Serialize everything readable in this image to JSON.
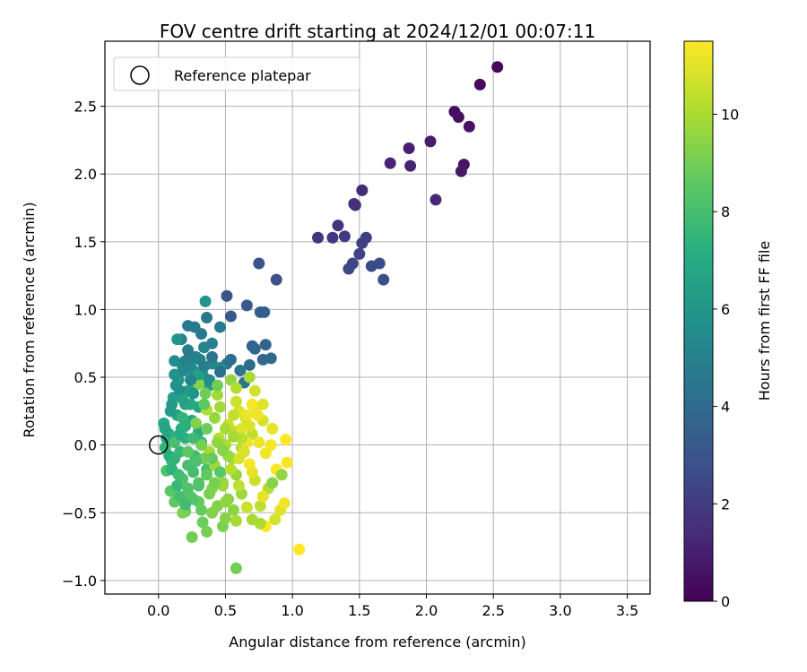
{
  "chart_data": {
    "type": "scatter",
    "title": "FOV centre drift starting at 2024/12/01 00:07:11",
    "xlabel": "Angular distance from reference (arcmin)",
    "ylabel": "Rotation from reference (arcmin)",
    "xlim": [
      -0.4,
      3.67
    ],
    "ylim": [
      -1.1,
      2.98
    ],
    "xticks": [
      0.0,
      0.5,
      1.0,
      1.5,
      2.0,
      2.5,
      3.0,
      3.5
    ],
    "xtick_labels": [
      "0.0",
      "0.5",
      "1.0",
      "1.5",
      "2.0",
      "2.5",
      "3.0",
      "3.5"
    ],
    "yticks": [
      -1.0,
      -0.5,
      0.0,
      0.5,
      1.0,
      1.5,
      2.0,
      2.5
    ],
    "ytick_labels": [
      "−1.0",
      "−0.5",
      "0.0",
      "0.5",
      "1.0",
      "1.5",
      "2.0",
      "2.5"
    ],
    "grid": true,
    "legend": {
      "placement": "top-left",
      "entries": [
        "Reference platepar"
      ]
    },
    "reference_point": {
      "x": 0.0,
      "y": 0.0
    },
    "colorbar": {
      "label": "Hours from first FF file",
      "min": 0,
      "max": 11.5,
      "ticks": [
        0,
        2,
        4,
        6,
        8,
        10
      ],
      "tick_labels": [
        "0",
        "2",
        "4",
        "6",
        "8",
        "10"
      ],
      "colormap": "viridis"
    },
    "points": [
      [
        2.53,
        2.79,
        0.2
      ],
      [
        2.4,
        2.66,
        0.3
      ],
      [
        2.21,
        2.46,
        0.4
      ],
      [
        2.24,
        2.42,
        0.5
      ],
      [
        2.32,
        2.35,
        0.6
      ],
      [
        2.28,
        2.07,
        0.7
      ],
      [
        2.26,
        2.02,
        0.8
      ],
      [
        2.03,
        2.24,
        0.9
      ],
      [
        1.87,
        2.19,
        1.0
      ],
      [
        1.88,
        2.06,
        1.1
      ],
      [
        1.73,
        2.08,
        1.2
      ],
      [
        2.07,
        1.81,
        1.3
      ],
      [
        1.52,
        1.88,
        1.4
      ],
      [
        1.46,
        1.78,
        1.5
      ],
      [
        1.47,
        1.77,
        1.6
      ],
      [
        1.34,
        1.62,
        1.7
      ],
      [
        1.19,
        1.53,
        1.8
      ],
      [
        1.3,
        1.53,
        1.9
      ],
      [
        1.39,
        1.54,
        2.0
      ],
      [
        1.55,
        1.53,
        2.1
      ],
      [
        1.52,
        1.49,
        2.2
      ],
      [
        1.5,
        1.41,
        2.3
      ],
      [
        1.45,
        1.34,
        2.4
      ],
      [
        1.42,
        1.3,
        2.5
      ],
      [
        1.59,
        1.32,
        2.6
      ],
      [
        1.65,
        1.34,
        2.7
      ],
      [
        1.68,
        1.22,
        2.8
      ],
      [
        0.88,
        1.22,
        2.9
      ],
      [
        0.75,
        1.34,
        3.0
      ],
      [
        0.51,
        1.1,
        3.1
      ],
      [
        0.66,
        1.03,
        3.2
      ],
      [
        0.54,
        0.95,
        3.3
      ],
      [
        0.76,
        0.98,
        3.4
      ],
      [
        0.79,
        0.98,
        3.5
      ],
      [
        0.7,
        0.73,
        3.6
      ],
      [
        0.8,
        0.74,
        3.7
      ],
      [
        0.72,
        0.71,
        3.8
      ],
      [
        0.78,
        0.63,
        3.9
      ],
      [
        0.84,
        0.64,
        4.0
      ],
      [
        0.68,
        0.59,
        4.1
      ],
      [
        0.54,
        0.63,
        4.2
      ],
      [
        0.51,
        0.6,
        4.3
      ],
      [
        0.61,
        0.55,
        4.4
      ],
      [
        0.64,
        0.46,
        4.5
      ],
      [
        0.22,
        0.88,
        4.6
      ],
      [
        0.27,
        0.87,
        4.7
      ],
      [
        0.46,
        0.87,
        4.8
      ],
      [
        0.17,
        0.78,
        4.9
      ],
      [
        0.4,
        0.75,
        5.0
      ],
      [
        0.34,
        0.72,
        5.1
      ],
      [
        0.23,
        0.65,
        5.2
      ],
      [
        0.31,
        0.63,
        5.3
      ],
      [
        0.4,
        0.6,
        5.4
      ],
      [
        0.46,
        0.57,
        5.5
      ],
      [
        0.12,
        0.62,
        5.6
      ],
      [
        0.18,
        0.58,
        5.7
      ],
      [
        0.26,
        0.55,
        5.8
      ],
      [
        0.33,
        0.52,
        5.9
      ],
      [
        0.35,
        1.06,
        6.0
      ],
      [
        0.15,
        0.48,
        6.1
      ],
      [
        0.28,
        0.46,
        6.2
      ],
      [
        0.38,
        0.44,
        6.3
      ],
      [
        0.22,
        0.4,
        6.4
      ],
      [
        0.11,
        0.35,
        6.5
      ],
      [
        0.2,
        0.3,
        6.6
      ],
      [
        0.3,
        0.28,
        6.7
      ],
      [
        0.14,
        0.22,
        6.8
      ],
      [
        0.25,
        0.18,
        6.9
      ],
      [
        0.04,
        0.16,
        7.0
      ],
      [
        0.17,
        0.12,
        7.1
      ],
      [
        0.3,
        0.1,
        7.2
      ],
      [
        0.08,
        0.08,
        7.3
      ],
      [
        0.2,
        0.05,
        7.4
      ],
      [
        0.32,
        0.02,
        7.5
      ],
      [
        0.05,
        -0.02,
        7.6
      ],
      [
        0.16,
        -0.05,
        7.7
      ],
      [
        0.27,
        -0.08,
        7.8
      ],
      [
        0.1,
        -0.12,
        7.9
      ],
      [
        0.22,
        -0.15,
        8.0
      ],
      [
        0.36,
        -0.18,
        8.1
      ],
      [
        0.06,
        -0.19,
        8.2
      ],
      [
        0.18,
        -0.25,
        8.3
      ],
      [
        0.3,
        -0.28,
        8.4
      ],
      [
        0.09,
        -0.34,
        8.5
      ],
      [
        0.24,
        -0.38,
        8.6
      ],
      [
        0.12,
        -0.42,
        8.7
      ],
      [
        0.2,
        -0.49,
        8.8
      ],
      [
        0.33,
        -0.57,
        8.9
      ],
      [
        0.25,
        -0.68,
        9.0
      ],
      [
        0.36,
        -0.64,
        9.1
      ],
      [
        0.18,
        -0.5,
        9.2
      ],
      [
        0.44,
        -0.45,
        9.3
      ],
      [
        0.52,
        -0.4,
        9.4
      ],
      [
        0.4,
        -0.32,
        9.5
      ],
      [
        0.48,
        -0.28,
        9.6
      ],
      [
        0.58,
        -0.22,
        9.7
      ],
      [
        0.42,
        -0.15,
        9.8
      ],
      [
        0.55,
        -0.1,
        9.9
      ],
      [
        0.38,
        -0.05,
        10.0
      ],
      [
        0.5,
        0.0,
        10.1
      ],
      [
        0.62,
        -0.02,
        10.2
      ],
      [
        0.45,
        0.05,
        10.3
      ],
      [
        0.58,
        0.1,
        10.4
      ],
      [
        0.7,
        0.08,
        10.5
      ],
      [
        0.52,
        0.15,
        10.6
      ],
      [
        0.65,
        0.2,
        10.7
      ],
      [
        0.78,
        0.18,
        10.8
      ],
      [
        0.6,
        0.25,
        10.9
      ],
      [
        0.72,
        0.28,
        11.0
      ],
      [
        0.85,
        0.12,
        11.1
      ],
      [
        0.75,
        0.02,
        11.2
      ],
      [
        0.8,
        -0.06,
        11.3
      ],
      [
        0.68,
        -0.14,
        11.4
      ],
      [
        0.88,
        -0.18,
        11.5
      ],
      [
        0.72,
        -0.26,
        10.6
      ],
      [
        0.82,
        -0.32,
        10.2
      ],
      [
        0.62,
        -0.36,
        9.8
      ],
      [
        0.56,
        -0.48,
        9.5
      ],
      [
        0.48,
        -0.6,
        9.2
      ],
      [
        0.58,
        -0.91,
        9.0
      ],
      [
        0.7,
        -0.55,
        10.0
      ],
      [
        0.76,
        -0.45,
        10.4
      ],
      [
        0.91,
        -0.48,
        11.0
      ],
      [
        0.94,
        -0.43,
        11.3
      ],
      [
        0.96,
        -0.13,
        11.4
      ],
      [
        0.95,
        0.04,
        11.5
      ],
      [
        0.8,
        -0.6,
        11.5
      ],
      [
        1.05,
        -0.77,
        11.5
      ],
      [
        0.87,
        -0.55,
        10.8
      ],
      [
        0.76,
        -0.58,
        10.1
      ],
      [
        0.92,
        -0.22,
        9.6
      ],
      [
        0.85,
        -0.28,
        9.4
      ],
      [
        0.66,
        0.22,
        11.2
      ],
      [
        0.7,
        0.3,
        11.4
      ],
      [
        0.74,
        0.22,
        11.3
      ],
      [
        0.68,
        0.5,
        10.0
      ],
      [
        0.54,
        0.48,
        9.6
      ],
      [
        0.44,
        0.37,
        9.9
      ],
      [
        0.35,
        0.38,
        9.0
      ],
      [
        0.3,
        0.45,
        9.4
      ],
      [
        0.36,
        0.26,
        10.2
      ],
      [
        0.42,
        0.2,
        9.7
      ],
      [
        0.28,
        0.16,
        9.3
      ],
      [
        0.32,
        0.0,
        9.1
      ],
      [
        0.4,
        -0.1,
        8.8
      ],
      [
        0.46,
        -0.2,
        8.5
      ],
      [
        0.26,
        -0.2,
        8.0
      ],
      [
        0.14,
        -0.3,
        7.7
      ],
      [
        0.1,
        -0.18,
        7.4
      ],
      [
        0.06,
        0.05,
        6.9
      ],
      [
        0.09,
        0.25,
        6.3
      ],
      [
        0.13,
        0.44,
        5.9
      ],
      [
        0.19,
        0.55,
        5.4
      ],
      [
        0.28,
        0.65,
        5.0
      ],
      [
        0.22,
        0.7,
        4.8
      ],
      [
        0.14,
        0.78,
        6.0
      ],
      [
        0.3,
        0.52,
        6.5
      ],
      [
        0.24,
        0.3,
        7.0
      ],
      [
        0.18,
        0.2,
        7.6
      ],
      [
        0.12,
        0.02,
        8.1
      ],
      [
        0.22,
        -0.05,
        8.6
      ],
      [
        0.34,
        -0.1,
        9.0
      ],
      [
        0.44,
        0.02,
        9.6
      ],
      [
        0.5,
        0.12,
        10.0
      ],
      [
        0.56,
        0.22,
        10.5
      ],
      [
        0.62,
        0.12,
        11.0
      ],
      [
        0.66,
        0.02,
        11.2
      ],
      [
        0.6,
        -0.1,
        10.8
      ],
      [
        0.54,
        -0.18,
        10.3
      ],
      [
        0.48,
        -0.3,
        9.8
      ],
      [
        0.38,
        -0.36,
        9.2
      ],
      [
        0.3,
        -0.42,
        8.7
      ],
      [
        0.22,
        -0.32,
        8.3
      ],
      [
        0.15,
        -0.22,
        7.9
      ],
      [
        0.08,
        -0.08,
        7.2
      ],
      [
        0.05,
        0.12,
        6.7
      ],
      [
        0.1,
        0.3,
        6.2
      ],
      [
        0.16,
        0.4,
        5.7
      ],
      [
        0.24,
        0.48,
        5.3
      ],
      [
        0.34,
        0.58,
        4.9
      ],
      [
        0.4,
        0.65,
        4.4
      ],
      [
        0.46,
        0.54,
        4.2
      ],
      [
        0.38,
        0.48,
        5.6
      ],
      [
        0.26,
        0.38,
        6.0
      ],
      [
        0.2,
        0.14,
        7.3
      ],
      [
        0.26,
        0.05,
        7.8
      ],
      [
        0.36,
        0.12,
        8.9
      ],
      [
        0.46,
        0.28,
        9.9
      ],
      [
        0.58,
        0.32,
        10.6
      ],
      [
        0.64,
        -0.05,
        10.9
      ],
      [
        0.7,
        -0.2,
        11.1
      ],
      [
        0.6,
        -0.3,
        10.4
      ],
      [
        0.5,
        -0.42,
        9.6
      ],
      [
        0.4,
        -0.5,
        9.3
      ],
      [
        0.32,
        -0.48,
        8.8
      ],
      [
        0.26,
        -0.4,
        8.4
      ],
      [
        0.16,
        -0.38,
        8.0
      ],
      [
        0.28,
        -0.12,
        8.2
      ],
      [
        0.34,
        0.3,
        8.6
      ],
      [
        0.44,
        0.44,
        9.0
      ],
      [
        0.58,
        0.42,
        10.2
      ],
      [
        0.72,
        0.4,
        10.7
      ],
      [
        0.78,
        0.3,
        11.0
      ],
      [
        0.84,
        0.0,
        11.4
      ],
      [
        0.78,
        -0.38,
        11.1
      ],
      [
        0.66,
        -0.46,
        10.6
      ],
      [
        0.58,
        -0.56,
        10.0
      ],
      [
        0.5,
        -0.54,
        9.4
      ],
      [
        0.42,
        -0.28,
        9.1
      ],
      [
        0.52,
        -0.08,
        9.7
      ],
      [
        0.62,
        0.05,
        10.3
      ],
      [
        0.68,
        0.14,
        10.9
      ],
      [
        0.56,
        0.06,
        10.0
      ],
      [
        0.48,
        -0.04,
        9.4
      ],
      [
        0.36,
        -0.22,
        8.7
      ],
      [
        0.3,
        -0.3,
        8.3
      ],
      [
        0.2,
        -0.44,
        7.9
      ],
      [
        0.12,
        -0.1,
        7.5
      ],
      [
        0.18,
        0.34,
        6.6
      ],
      [
        0.24,
        0.58,
        5.5
      ],
      [
        0.32,
        0.82,
        4.7
      ],
      [
        0.36,
        0.94,
        4.5
      ],
      [
        0.2,
        0.62,
        5.1
      ],
      [
        0.12,
        0.52,
        5.8
      ],
      [
        0.16,
        0.08,
        7.1
      ]
    ]
  }
}
